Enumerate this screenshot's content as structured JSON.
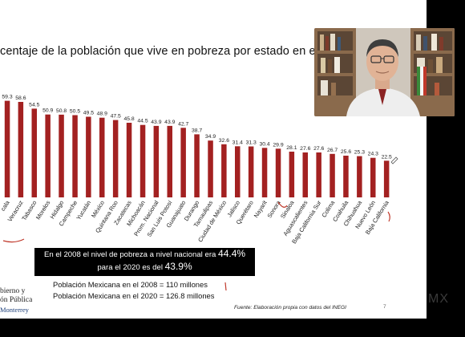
{
  "slide": {
    "title": "centaje de la población que vive en pobreza por estado en el",
    "note": {
      "line1_prefix": "En el 2008 el nivel de pobreza a nivel nacional era",
      "line1_value": "44.4%",
      "line2_prefix": "para el 2020 es del",
      "line2_value": "43.9%"
    },
    "population": {
      "line1": "Población Mexicana en el 2008 = 110 millones",
      "line2": "Población Mexicana en el 2020 = 126.8 millones"
    },
    "logo": {
      "line1": "bierno y",
      "line2": "ón Pública",
      "line3": "Monterrey"
    },
    "source": "Fuente: Elaboración propia con datos del INEGI",
    "page_number": "7"
  },
  "watermark": "MX",
  "colors": {
    "bar": "#a32121",
    "annotation": "#c0392b",
    "logo_blue": "#1c3f7a"
  },
  "chart_data": {
    "type": "bar",
    "categories": [
      "cala",
      "Veracruz",
      "Tabasco",
      "Morelos",
      "Hidalgo",
      "Campeche",
      "Yucatán",
      "México",
      "Quintana Roo",
      "Zacatecas",
      "Michoacán",
      "Prom. Nacional",
      "San Luis Potosí",
      "Guanajuato",
      "Durango",
      "Tamaulipas",
      "Ciudad de México",
      "Jalisco",
      "Querétaro",
      "Nayarit",
      "Sonora",
      "Sinaloa",
      "Aguascalientes",
      "Baja California Sur",
      "Colima",
      "Coahuila",
      "Chihuahua",
      "Nuevo León",
      "Baja California"
    ],
    "values": [
      59.3,
      58.6,
      54.5,
      50.9,
      50.8,
      50.5,
      49.5,
      48.9,
      47.5,
      45.8,
      44.5,
      43.9,
      43.9,
      42.7,
      38.7,
      34.9,
      32.6,
      31.4,
      31.3,
      30.4,
      29.9,
      28.1,
      27.6,
      27.6,
      26.7,
      25.6,
      25.3,
      24.3,
      22.5
    ],
    "value_labels": [
      "59.3",
      "58.6",
      "54.5",
      "50.9",
      "50.8",
      "50.5",
      "49.5",
      "48.9",
      "47.5",
      "45.8",
      "44.5",
      "43.9",
      "43.9",
      "42.7",
      "38.7",
      "34.9",
      "32.6",
      "31.4",
      "31.3",
      "30.4",
      "29.9",
      "28.1",
      "27.6",
      "27.6",
      "26.7",
      "25.6",
      "25.3",
      "24.3",
      "22.5"
    ],
    "ylim": [
      0,
      60
    ],
    "grid": false,
    "legend": "none"
  }
}
